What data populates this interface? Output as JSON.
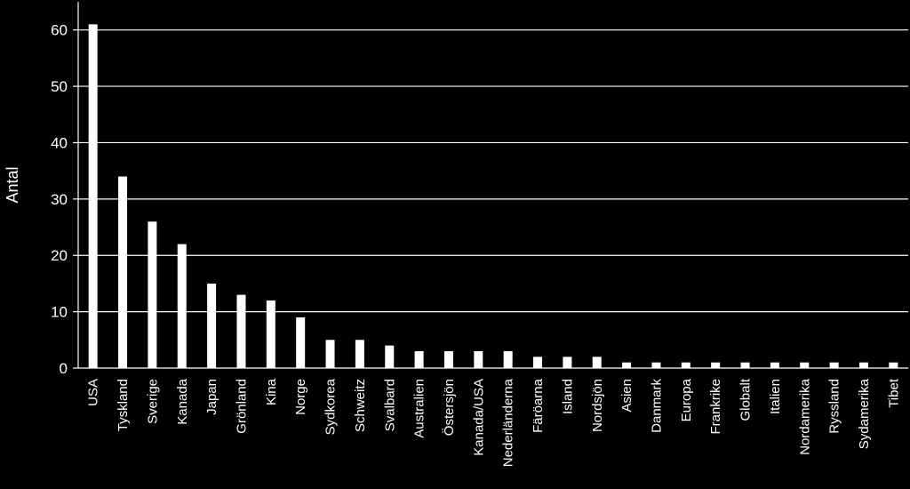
{
  "chart_data": {
    "type": "bar",
    "ylabel": "Antal",
    "ylim": [
      0,
      65
    ],
    "yticks": [
      0,
      10,
      20,
      30,
      40,
      50,
      60
    ],
    "grid": true,
    "colors": {
      "background": "#000000",
      "bar": "#ffffff",
      "grid": "#ffffff",
      "text": "#ffffff"
    },
    "categories": [
      "USA",
      "Tyskland",
      "Sverige",
      "Kanada",
      "Japan",
      "Grönland",
      "Kina",
      "Norge",
      "Sydkorea",
      "Schweitz",
      "Svalbard",
      "Australien",
      "Östersjön",
      "Kanada/USA",
      "Nederländerna",
      "Färöarna",
      "Island",
      "Nordsjön",
      "Asien",
      "Danmark",
      "Europa",
      "Frankrike",
      "Globalt",
      "Italien",
      "Nordamerika",
      "Ryssland",
      "Sydamerika",
      "Tibet"
    ],
    "values": [
      61,
      34,
      26,
      22,
      15,
      13,
      12,
      9,
      5,
      5,
      4,
      3,
      3,
      3,
      3,
      2,
      2,
      2,
      1,
      1,
      1,
      1,
      1,
      1,
      1,
      1,
      1,
      1
    ]
  }
}
